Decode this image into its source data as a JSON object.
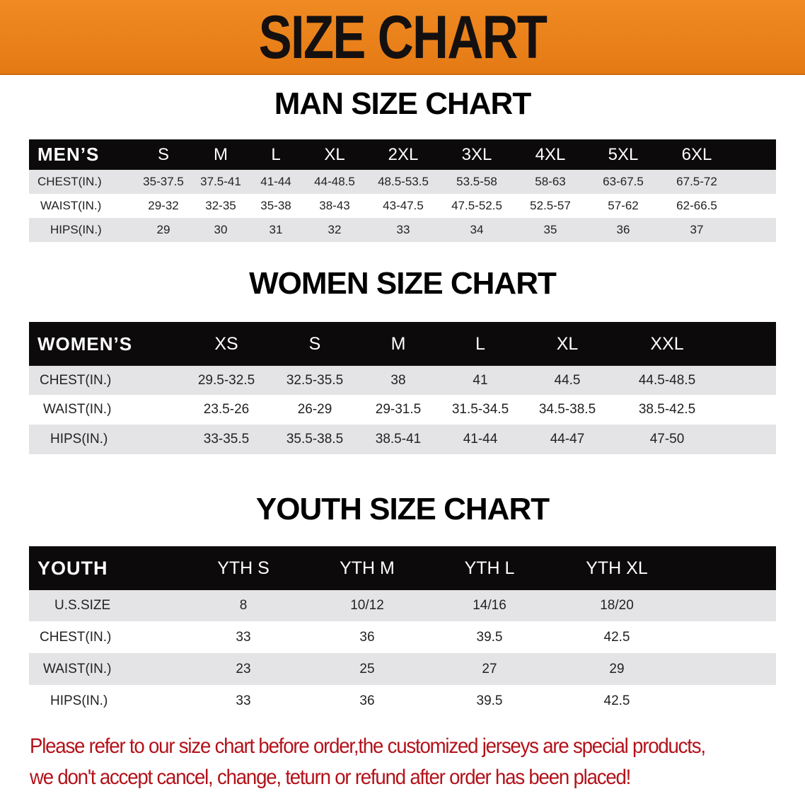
{
  "banner": {
    "title": "SIZE CHART",
    "color": "#ef8620"
  },
  "men": {
    "title": "MAN SIZE CHART",
    "header": [
      "MEN’S",
      "S",
      "M",
      "L",
      "XL",
      "2XL",
      "3XL",
      "4XL",
      "5XL",
      "6XL"
    ],
    "rows": [
      [
        "CHEST(IN.)",
        "35-37.5",
        "37.5-41",
        "41-44",
        "44-48.5",
        "48.5-53.5",
        "53.5-58",
        "58-63",
        "63-67.5",
        "67.5-72"
      ],
      [
        "WAIST(IN.)",
        "29-32",
        "32-35",
        "35-38",
        "38-43",
        "43-47.5",
        "47.5-52.5",
        "52.5-57",
        "57-62",
        "62-66.5"
      ],
      [
        "HIPS(IN.)",
        "29",
        "30",
        "31",
        "32",
        "33",
        "34",
        "35",
        "36",
        "37"
      ]
    ]
  },
  "women": {
    "title": "WOMEN SIZE CHART",
    "header": [
      "WOMEN’S",
      "XS",
      "S",
      "M",
      "L",
      "XL",
      "XXL"
    ],
    "rows": [
      [
        "CHEST(IN.)",
        "29.5-32.5",
        "32.5-35.5",
        "38",
        "41",
        "44.5",
        "44.5-48.5"
      ],
      [
        "WAIST(IN.)",
        "23.5-26",
        "26-29",
        "29-31.5",
        "31.5-34.5",
        "34.5-38.5",
        "38.5-42.5"
      ],
      [
        "HIPS(IN.)",
        "33-35.5",
        "35.5-38.5",
        "38.5-41",
        "41-44",
        "44-47",
        "47-50"
      ]
    ]
  },
  "youth": {
    "title": "YOUTH SIZE CHART",
    "header": [
      "YOUTH",
      "YTH S",
      "YTH M",
      "YTH L",
      "YTH XL"
    ],
    "rows": [
      [
        "U.S.SIZE",
        "8",
        "10/12",
        "14/16",
        "18/20"
      ],
      [
        "CHEST(IN.)",
        "33",
        "36",
        "39.5",
        "42.5"
      ],
      [
        "WAIST(IN.)",
        "23",
        "25",
        "27",
        "29"
      ],
      [
        "HIPS(IN.)",
        "33",
        "36",
        "39.5",
        "42.5"
      ]
    ]
  },
  "note": {
    "line1": "Please refer to our size chart before order,the customized jerseys are special products,",
    "line2": "we don't accept cancel, change, teturn or refund after order has been placed!",
    "color": "#b3121a"
  }
}
